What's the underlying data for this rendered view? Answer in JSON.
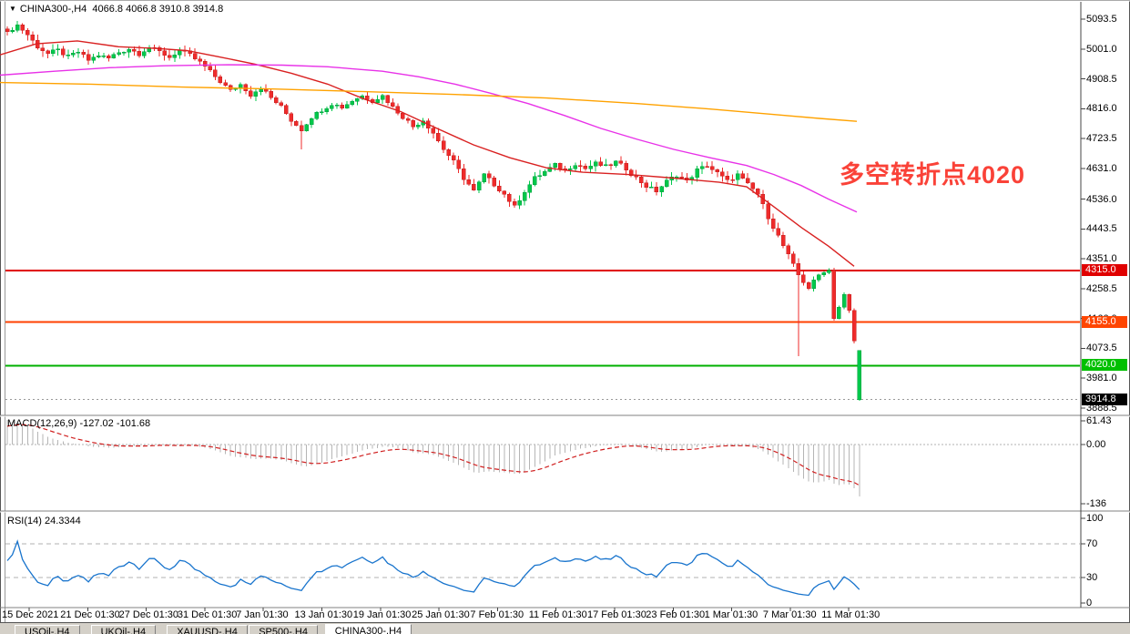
{
  "title": {
    "collapse_icon": "▼",
    "symbol": "CHINA300-,H4",
    "open": "4066.8",
    "high": "4066.8",
    "low": "3910.8",
    "close": "3914.8"
  },
  "annotation": {
    "text": "多空转折点4020",
    "color": "#fa4238"
  },
  "price_axis": {
    "gridline_labels": [
      {
        "text": "5093.5",
        "price": 5093.5
      },
      {
        "text": "5001.0",
        "price": 5001.0
      },
      {
        "text": "4908.5",
        "price": 4908.5
      },
      {
        "text": "4816.0",
        "price": 4816.0
      },
      {
        "text": "4723.5",
        "price": 4723.5
      },
      {
        "text": "4631.0",
        "price": 4631.0
      },
      {
        "text": "4536.0",
        "price": 4536.0
      },
      {
        "text": "4443.5",
        "price": 4443.5
      },
      {
        "text": "4351.0",
        "price": 4351.0
      },
      {
        "text": "4258.5",
        "price": 4258.5
      },
      {
        "text": "4166.0",
        "price": 4166.0
      },
      {
        "text": "4073.5",
        "price": 4073.5
      },
      {
        "text": "3981.0",
        "price": 3981.0
      },
      {
        "text": "3888.5",
        "price": 3888.5
      }
    ]
  },
  "levels": [
    {
      "label": "4315.0",
      "price": 4315.0,
      "line_color": "#e00000",
      "badge_bg": "#e00000",
      "style": "solid",
      "width": 2
    },
    {
      "label": "4155.0",
      "price": 4155.0,
      "line_color": "#ff4000",
      "badge_bg": "#ff4500",
      "style": "solid",
      "width": 2
    },
    {
      "label": "4020.0",
      "price": 4020.0,
      "line_color": "#00b000",
      "badge_bg": "#00c000",
      "style": "solid",
      "width": 2
    },
    {
      "label": "3914.8",
      "price": 3914.8,
      "line_color": "#999999",
      "badge_bg": "#000000",
      "style": "dotted",
      "width": 1
    }
  ],
  "macd": {
    "label": "MACD(12,26,9)",
    "main_value": "-127.02",
    "signal_value": "-101.68",
    "axis_labels": [
      {
        "text": "61.43",
        "y": 462
      },
      {
        "text": "0.00",
        "y": 488
      },
      {
        "text": "-136",
        "y": 553
      }
    ]
  },
  "rsi": {
    "label": "RSI(14)",
    "value": "24.3344",
    "axis_labels": [
      {
        "text": "100",
        "y": 569
      },
      {
        "text": "70",
        "y": 597
      },
      {
        "text": "30",
        "y": 634
      },
      {
        "text": "0",
        "y": 662
      }
    ],
    "level_lines": [
      70,
      30
    ]
  },
  "xaxis": {
    "labels": [
      "15 Dec 2021",
      "21 Dec 01:30",
      "27 Dec 01:30",
      "31 Dec 01:30",
      "7 Jan 01:30",
      "13 Jan 01:30",
      "19 Jan 01:30",
      "25 Jan 01:30",
      "7 Feb 01:30",
      "11 Feb 01:30",
      "17 Feb 01:30",
      "23 Feb 01:30",
      "1 Mar 01:30",
      "7 Mar 01:30",
      "11 Mar 01:30"
    ]
  },
  "tabs": {
    "items": [
      {
        "label": "USOil-,H4",
        "selected": false
      },
      {
        "label": "UKOil-,H4",
        "selected": false
      },
      {
        "label": "XAUUSD-,H4",
        "selected": false
      },
      {
        "label": "SP500-,H4",
        "selected": false
      },
      {
        "label": "CHINA300-,H4",
        "selected": true
      }
    ]
  },
  "chart_data": [
    {
      "type": "candlestick",
      "title": "CHINA300-,H4",
      "timeframe": "H4",
      "ylim": [
        3868,
        5125
      ],
      "bar_count": 169,
      "close_anchors": [
        [
          0,
          5055
        ],
        [
          2,
          5075
        ],
        [
          4,
          5045
        ],
        [
          6,
          5008
        ],
        [
          8,
          4986
        ],
        [
          10,
          4997
        ],
        [
          12,
          4976
        ],
        [
          14,
          4992
        ],
        [
          16,
          4966
        ],
        [
          18,
          4982
        ],
        [
          20,
          4972
        ],
        [
          22,
          4991
        ],
        [
          24,
          5002
        ],
        [
          26,
          4987
        ],
        [
          28,
          5007
        ],
        [
          30,
          4992
        ],
        [
          32,
          4976
        ],
        [
          34,
          4996
        ],
        [
          36,
          4981
        ],
        [
          38,
          4960
        ],
        [
          40,
          4931
        ],
        [
          42,
          4900
        ],
        [
          44,
          4871
        ],
        [
          46,
          4891
        ],
        [
          48,
          4860
        ],
        [
          50,
          4881
        ],
        [
          52,
          4850
        ],
        [
          54,
          4821
        ],
        [
          56,
          4781
        ],
        [
          58,
          4752
        ],
        [
          60,
          4791
        ],
        [
          62,
          4812
        ],
        [
          64,
          4831
        ],
        [
          66,
          4821
        ],
        [
          68,
          4841
        ],
        [
          70,
          4856
        ],
        [
          72,
          4841
        ],
        [
          74,
          4856
        ],
        [
          76,
          4821
        ],
        [
          78,
          4791
        ],
        [
          80,
          4761
        ],
        [
          82,
          4781
        ],
        [
          84,
          4741
        ],
        [
          86,
          4691
        ],
        [
          88,
          4651
        ],
        [
          90,
          4601
        ],
        [
          92,
          4561
        ],
        [
          94,
          4611
        ],
        [
          96,
          4581
        ],
        [
          98,
          4551
        ],
        [
          100,
          4511
        ],
        [
          102,
          4561
        ],
        [
          104,
          4601
        ],
        [
          106,
          4621
        ],
        [
          108,
          4641
        ],
        [
          110,
          4626
        ],
        [
          112,
          4646
        ],
        [
          114,
          4631
        ],
        [
          116,
          4646
        ],
        [
          118,
          4636
        ],
        [
          120,
          4651
        ],
        [
          122,
          4631
        ],
        [
          124,
          4601
        ],
        [
          126,
          4576
        ],
        [
          128,
          4561
        ],
        [
          130,
          4591
        ],
        [
          132,
          4611
        ],
        [
          134,
          4591
        ],
        [
          136,
          4626
        ],
        [
          138,
          4641
        ],
        [
          140,
          4616
        ],
        [
          142,
          4591
        ],
        [
          144,
          4611
        ],
        [
          146,
          4581
        ],
        [
          148,
          4551
        ],
        [
          150,
          4481
        ],
        [
          152,
          4421
        ],
        [
          154,
          4361
        ],
        [
          156,
          4301
        ],
        [
          158,
          4261
        ],
        [
          160,
          4301
        ],
        [
          162,
          4316
        ],
        [
          163,
          4166
        ],
        [
          164,
          4201
        ],
        [
          165,
          4241
        ],
        [
          166,
          4191
        ],
        [
          167,
          4096
        ],
        [
          168,
          3914.8
        ]
      ],
      "bar_overrides": [
        {
          "i": 168,
          "o": 4066.8,
          "h": 4066.8,
          "l": 3910.8,
          "c": 3914.8,
          "dir": "up"
        },
        {
          "i": 156,
          "l": 4050
        },
        {
          "i": 58,
          "l": 4690
        }
      ],
      "moving_averages": [
        {
          "name": "ma-fast-red",
          "color": "#d92121",
          "anchors": [
            [
              0,
              4983
            ],
            [
              40,
              5017
            ],
            [
              85,
              5026
            ],
            [
              130,
              5008
            ],
            [
              170,
              5003
            ],
            [
              205,
              4996
            ],
            [
              240,
              4977
            ],
            [
              280,
              4954
            ],
            [
              320,
              4926
            ],
            [
              360,
              4892
            ],
            [
              400,
              4846
            ],
            [
              440,
              4807
            ],
            [
              480,
              4755
            ],
            [
              520,
              4704
            ],
            [
              560,
              4664
            ],
            [
              600,
              4633
            ],
            [
              640,
              4619
            ],
            [
              690,
              4612
            ],
            [
              740,
              4601
            ],
            [
              790,
              4588
            ],
            [
              820,
              4574
            ],
            [
              850,
              4512
            ],
            [
              880,
              4448
            ],
            [
              910,
              4390
            ],
            [
              938,
              4328
            ]
          ]
        },
        {
          "name": "ma-mid-magenta",
          "color": "#e832e8",
          "anchors": [
            [
              0,
              4920
            ],
            [
              60,
              4932
            ],
            [
              120,
              4943
            ],
            [
              180,
              4949
            ],
            [
              250,
              4952
            ],
            [
              310,
              4951
            ],
            [
              360,
              4946
            ],
            [
              420,
              4932
            ],
            [
              460,
              4915
            ],
            [
              500,
              4892
            ],
            [
              540,
              4863
            ],
            [
              580,
              4832
            ],
            [
              620,
              4795
            ],
            [
              660,
              4755
            ],
            [
              700,
              4721
            ],
            [
              740,
              4690
            ],
            [
              780,
              4664
            ],
            [
              820,
              4640
            ],
            [
              850,
              4612
            ],
            [
              880,
              4578
            ],
            [
              910,
              4536
            ],
            [
              941,
              4496
            ]
          ]
        },
        {
          "name": "ma-slow-orange",
          "color": "#ffa200",
          "anchors": [
            [
              0,
              4897
            ],
            [
              100,
              4892
            ],
            [
              200,
              4883
            ],
            [
              300,
              4877
            ],
            [
              400,
              4869
            ],
            [
              500,
              4860
            ],
            [
              600,
              4849
            ],
            [
              700,
              4832
            ],
            [
              780,
              4815
            ],
            [
              850,
              4798
            ],
            [
              900,
              4786
            ],
            [
              941,
              4777
            ]
          ]
        }
      ],
      "colors": {
        "up": "#00c84b",
        "up_stroke": "#009e3c",
        "down": "#ef2b2b",
        "down_stroke": "#c02020"
      }
    },
    {
      "type": "bar",
      "name": "MACD",
      "params": "12,26,9",
      "main": -127.02,
      "signal": -101.68,
      "ylim": [
        -136,
        61.43
      ],
      "derived_from": "candle closes: EMA12-EMA26, signal EMA9",
      "init_gap": 60,
      "signal_init": 38,
      "scale_to_min": -127,
      "colors": {
        "hist": "#b5b5b5",
        "signal": "#d02020"
      }
    },
    {
      "type": "line",
      "name": "RSI",
      "period": 14,
      "last_value": 24.3344,
      "ylim": [
        0,
        100
      ],
      "levels": [
        70,
        30
      ],
      "colors": {
        "line": "#1874cd",
        "level_dash": "#b0b0b0"
      }
    }
  ]
}
